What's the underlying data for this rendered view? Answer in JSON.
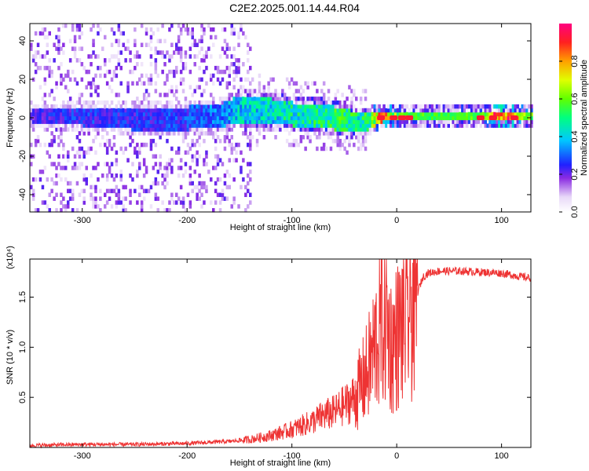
{
  "title": "C2E2.2025.001.14.44.R04",
  "chart_data": [
    {
      "type": "heatmap",
      "xlabel": "Height of straight line (km)",
      "ylabel": "Frequency (Hz)",
      "xlim": [
        -350,
        128
      ],
      "ylim": [
        -49,
        49
      ],
      "xticks": [
        -300,
        -200,
        -100,
        0,
        100
      ],
      "yticks": [
        -40,
        -20,
        0,
        20,
        40
      ],
      "colorbar": {
        "label": "Normalized spectral amplitude",
        "range": [
          0,
          1
        ],
        "ticks": [
          "0.0",
          "0.2",
          "0.4",
          "0.6",
          "0.8"
        ]
      },
      "band": {
        "x": [
          -350,
          -320,
          -300,
          -270,
          -240,
          -200,
          -170,
          -150,
          -120,
          -100,
          -70,
          -50,
          -35,
          -25,
          -15,
          0,
          20,
          50,
          80,
          100,
          128
        ],
        "half_width_hz": [
          3,
          4,
          5,
          5,
          6,
          6,
          6,
          7,
          7,
          6,
          6,
          6,
          5,
          4,
          3,
          3,
          3,
          3,
          3,
          3,
          3
        ],
        "center_hz": [
          0,
          0,
          0,
          -1,
          -2,
          -1,
          0,
          4,
          2,
          1,
          0,
          -2,
          -4,
          -2,
          0,
          0,
          0,
          0,
          0,
          0,
          0
        ],
        "amplitude": [
          0.22,
          0.24,
          0.26,
          0.24,
          0.25,
          0.27,
          0.32,
          0.4,
          0.42,
          0.45,
          0.48,
          0.5,
          0.46,
          0.55,
          0.9,
          0.55,
          0.5,
          0.5,
          0.52,
          0.95,
          0.55
        ]
      },
      "hot_spots_km": [
        -15,
        -3,
        5,
        12,
        80,
        92,
        112
      ]
    },
    {
      "type": "line",
      "xlabel": "Height of straight line (km)",
      "ylabel": "SNR (10 * v/v)",
      "yscale_label": "(x10⁴)",
      "xlim": [
        -350,
        128
      ],
      "ylim": [
        0,
        1.88
      ],
      "xticks": [
        -300,
        -200,
        -100,
        0,
        100
      ],
      "yticks": [
        "0.5",
        "1.0",
        "1.5"
      ],
      "ytick_values": [
        0.5,
        1.0,
        1.5
      ],
      "color": "#ee3333",
      "series": [
        {
          "x": [
            -350,
            -300,
            -250,
            -200,
            -180,
            -160,
            -140,
            -120,
            -100,
            -90,
            -80,
            -70,
            -60,
            -50,
            -40,
            -30,
            -25,
            -20,
            -15,
            -10,
            -5,
            0,
            10,
            20,
            25,
            30,
            40,
            60,
            80,
            100,
            110,
            115,
            128
          ],
          "y": [
            0.02,
            0.03,
            0.03,
            0.04,
            0.05,
            0.06,
            0.08,
            0.12,
            0.18,
            0.22,
            0.26,
            0.32,
            0.35,
            0.42,
            0.5,
            0.7,
            0.85,
            1.05,
            1.2,
            1.3,
            1.0,
            1.1,
            1.3,
            1.55,
            1.7,
            1.74,
            1.76,
            1.76,
            1.75,
            1.74,
            1.72,
            1.71,
            1.69
          ]
        }
      ]
    }
  ]
}
